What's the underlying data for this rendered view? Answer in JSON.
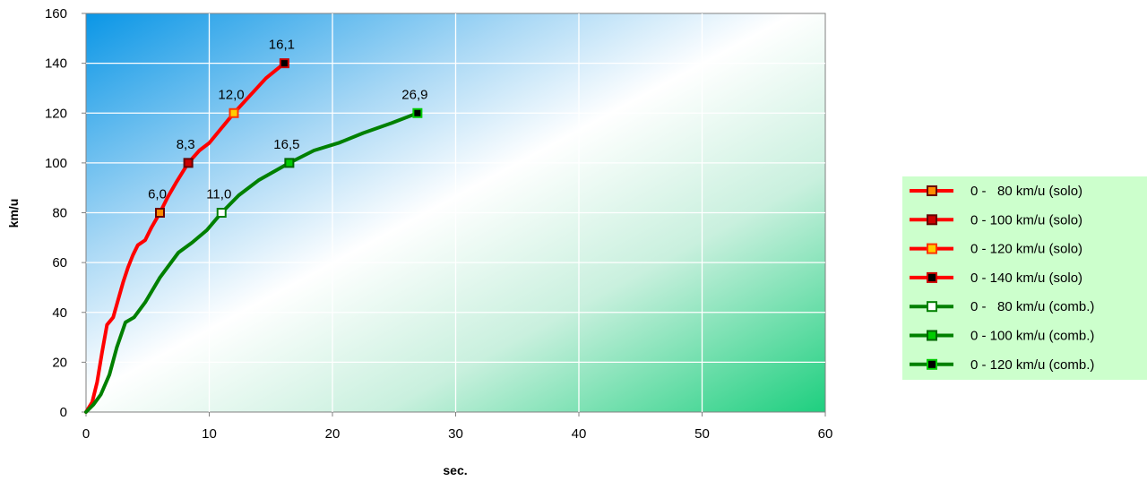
{
  "chart_data": {
    "type": "line",
    "title": "",
    "xlabel": "sec.",
    "ylabel": "km/u",
    "xlim": [
      0,
      60
    ],
    "ylim": [
      0,
      160
    ],
    "x_ticks": [
      0,
      10,
      20,
      30,
      40,
      50,
      60
    ],
    "y_ticks": [
      0,
      20,
      40,
      60,
      80,
      100,
      120,
      140,
      160
    ],
    "x_tick_labels": [
      "0",
      "10",
      "20",
      "30",
      "40",
      "50",
      "60"
    ],
    "y_tick_labels": [
      "0",
      "20",
      "40",
      "60",
      "80",
      "100",
      "120",
      "140",
      "160"
    ],
    "grid": true,
    "legend_position": "right",
    "background": "gradient blue-white-green",
    "curves": [
      {
        "color": "#ff0000",
        "points": [
          [
            0,
            0
          ],
          [
            0.5,
            4
          ],
          [
            0.9,
            12
          ],
          [
            1.3,
            24
          ],
          [
            1.7,
            35
          ],
          [
            2.2,
            38
          ],
          [
            2.6,
            45
          ],
          [
            3.0,
            52
          ],
          [
            3.4,
            58
          ],
          [
            3.8,
            63
          ],
          [
            4.2,
            67
          ],
          [
            4.8,
            69
          ],
          [
            5.3,
            74
          ],
          [
            6.0,
            80
          ],
          [
            6.6,
            86
          ],
          [
            7.3,
            92
          ],
          [
            8.3,
            100
          ],
          [
            9.2,
            105
          ],
          [
            10.0,
            108
          ],
          [
            11.0,
            114
          ],
          [
            12.0,
            120
          ],
          [
            13.3,
            127
          ],
          [
            14.6,
            134
          ],
          [
            16.1,
            140
          ]
        ]
      },
      {
        "color": "#008000",
        "points": [
          [
            0,
            0
          ],
          [
            0.6,
            3
          ],
          [
            1.2,
            7
          ],
          [
            1.9,
            15
          ],
          [
            2.5,
            26
          ],
          [
            3.2,
            36
          ],
          [
            3.9,
            38
          ],
          [
            4.8,
            44
          ],
          [
            6.0,
            54
          ],
          [
            7.5,
            64
          ],
          [
            8.6,
            68
          ],
          [
            9.8,
            73
          ],
          [
            11.0,
            80
          ],
          [
            12.4,
            87
          ],
          [
            14.0,
            93
          ],
          [
            16.5,
            100
          ],
          [
            18.5,
            105
          ],
          [
            20.5,
            108
          ],
          [
            22.5,
            112
          ],
          [
            24.8,
            116
          ],
          [
            26.9,
            120
          ]
        ]
      }
    ],
    "series": [
      {
        "name": "0 -   80 km/u (solo)",
        "x": 6.0,
        "y": 80,
        "label": "6,0",
        "line_color": "#ff0000",
        "marker_fill": "#ff8c00",
        "marker_stroke": "#6b0000"
      },
      {
        "name": "0 - 100 km/u (solo)",
        "x": 8.3,
        "y": 100,
        "label": "8,3",
        "line_color": "#ff0000",
        "marker_fill": "#cc0000",
        "marker_stroke": "#660000"
      },
      {
        "name": "0 - 120 km/u (solo)",
        "x": 12.0,
        "y": 120,
        "label": "12,0",
        "line_color": "#ff0000",
        "marker_fill": "#ffcc00",
        "marker_stroke": "#ff3300"
      },
      {
        "name": "0 - 140 km/u (solo)",
        "x": 16.1,
        "y": 140,
        "label": "16,1",
        "line_color": "#ff0000",
        "marker_fill": "#000000",
        "marker_stroke": "#cc0000"
      },
      {
        "name": "0 -   80 km/u (comb.)",
        "x": 11.0,
        "y": 80,
        "label": "11,0",
        "line_color": "#008000",
        "marker_fill": "#ffffff",
        "marker_stroke": "#008000"
      },
      {
        "name": "0 - 100 km/u (comb.)",
        "x": 16.5,
        "y": 100,
        "label": "16,5",
        "line_color": "#008000",
        "marker_fill": "#00cc00",
        "marker_stroke": "#006600"
      },
      {
        "name": "0 - 120 km/u (comb.)",
        "x": 26.9,
        "y": 120,
        "label": "26,9",
        "line_color": "#008000",
        "marker_fill": "#000000",
        "marker_stroke": "#00cc00"
      }
    ]
  }
}
